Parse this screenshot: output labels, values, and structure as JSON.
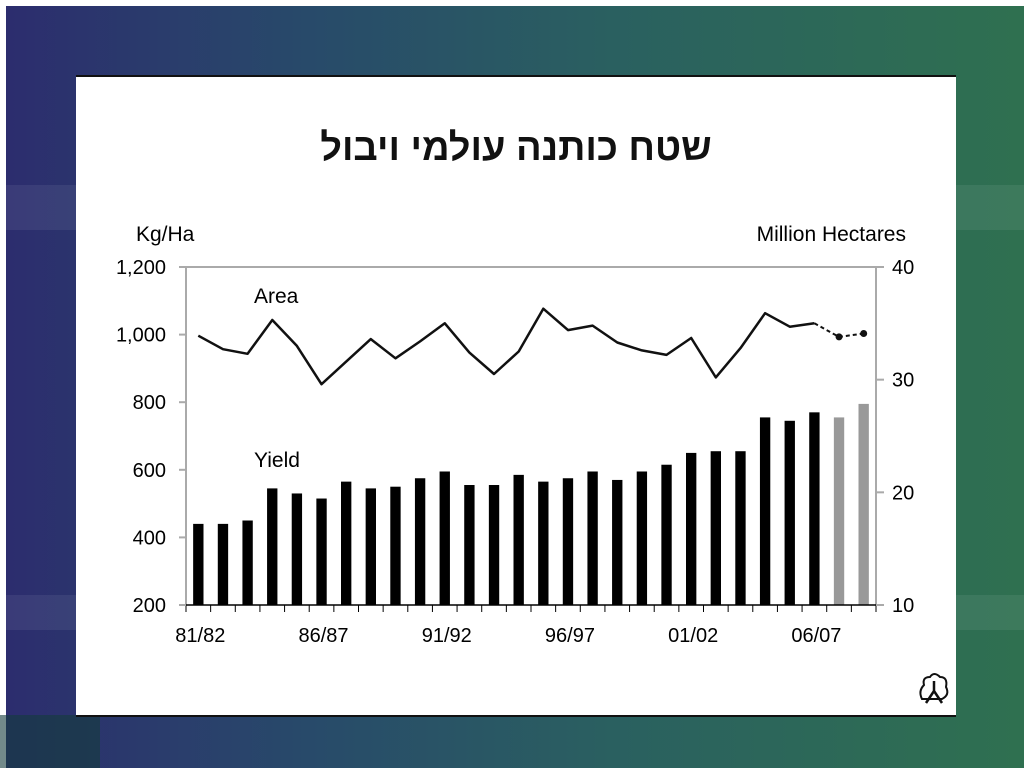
{
  "slide": {
    "title": "שטח כותנה עולמי ויבול",
    "logo_icon": "cotton-boll-icon"
  },
  "chart_data": {
    "type": "bar+line",
    "left_axis_label": "Kg/Ha",
    "right_axis_label": "Million Hectares",
    "left_ylim": [
      200,
      1200
    ],
    "left_ticks": [
      "1,200",
      "1,000",
      "800",
      "600",
      "400",
      "200"
    ],
    "left_tick_values": [
      1200,
      1000,
      800,
      600,
      400,
      200
    ],
    "right_ylim": [
      10,
      40
    ],
    "right_ticks": [
      "40",
      "30",
      "20",
      "10"
    ],
    "right_tick_values": [
      40,
      30,
      20,
      10
    ],
    "x_labels": [
      "81/82",
      "86/87",
      "91/92",
      "96/97",
      "01/02",
      "06/07"
    ],
    "x_label_indices": [
      0,
      5,
      10,
      15,
      20,
      25
    ],
    "grid": false,
    "series": [
      {
        "name": "Yield",
        "type": "bar",
        "axis": "left",
        "values": [
          440,
          440,
          450,
          545,
          530,
          515,
          565,
          545,
          550,
          575,
          595,
          555,
          555,
          585,
          565,
          575,
          595,
          570,
          595,
          615,
          650,
          655,
          655,
          755,
          745,
          770,
          755,
          795
        ],
        "colors": [
          "#000000",
          "#000000",
          "#000000",
          "#000000",
          "#000000",
          "#000000",
          "#000000",
          "#000000",
          "#000000",
          "#000000",
          "#000000",
          "#000000",
          "#000000",
          "#000000",
          "#000000",
          "#000000",
          "#000000",
          "#000000",
          "#000000",
          "#000000",
          "#000000",
          "#000000",
          "#000000",
          "#000000",
          "#000000",
          "#000000",
          "#999999",
          "#999999"
        ]
      },
      {
        "name": "Area",
        "type": "line",
        "axis": "right",
        "values": [
          33.9,
          32.7,
          32.3,
          35.3,
          33.0,
          29.6,
          31.6,
          33.6,
          31.9,
          33.4,
          35.0,
          32.4,
          30.5,
          32.5,
          36.3,
          34.4,
          34.8,
          33.3,
          32.6,
          32.2,
          33.7,
          30.2,
          32.8,
          35.9,
          34.7,
          35.0,
          33.8,
          34.1
        ],
        "projected_from_index": 26
      }
    ]
  }
}
